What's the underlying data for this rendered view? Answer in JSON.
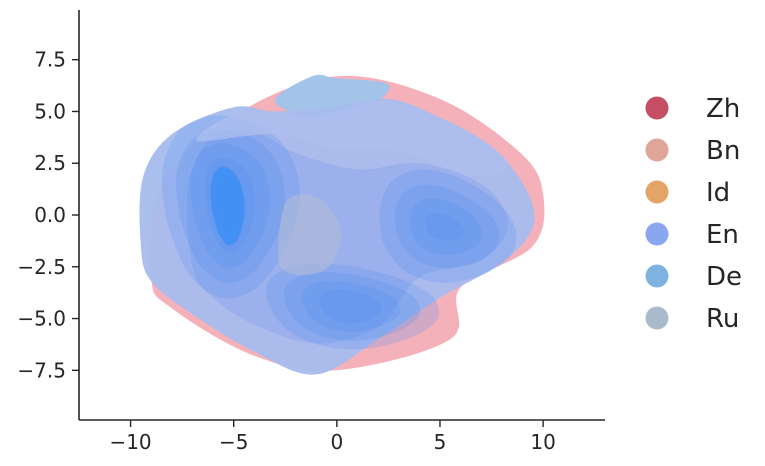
{
  "chart_data": {
    "type": "area",
    "subtype": "kde-density-contours",
    "title": "",
    "xlabel": "",
    "ylabel": "",
    "xlim": [
      -12.5,
      13
    ],
    "ylim": [
      -9.9,
      9.9
    ],
    "x_ticks": [
      -10,
      -5,
      0,
      5,
      10
    ],
    "y_ticks": [
      -7.5,
      -5.0,
      -2.5,
      0.0,
      2.5,
      5.0,
      7.5
    ],
    "x_tick_labels": [
      "−10",
      "−5",
      "0",
      "5",
      "10"
    ],
    "y_tick_labels": [
      "−7.5",
      "−5.0",
      "−2.5",
      "0.0",
      "2.5",
      "5.0",
      "7.5"
    ],
    "grid": false,
    "legend_position": "right",
    "series": [
      {
        "name": "Zh",
        "color": "#c44e64"
      },
      {
        "name": "Bn",
        "color": "#dea598"
      },
      {
        "name": "Id",
        "color": "#e2a566"
      },
      {
        "name": "En",
        "color": "#8aa6ef"
      },
      {
        "name": "De",
        "color": "#7fb2e0"
      },
      {
        "name": "Ru",
        "color": "#a9bacb"
      }
    ],
    "outer_extents": [
      {
        "series": "Zh",
        "color": "#f4adb6",
        "outline": [
          [
            -9,
            -3
          ],
          [
            -8.5,
            1.5
          ],
          [
            -5,
            4.8
          ],
          [
            0,
            6.7
          ],
          [
            5,
            5.6
          ],
          [
            8.9,
            3
          ],
          [
            10,
            1
          ],
          [
            9.5,
            -1.5
          ],
          [
            6,
            -3.5
          ],
          [
            5.5,
            -6
          ],
          [
            0,
            -7.5
          ],
          [
            -4,
            -6.8
          ],
          [
            -8,
            -4.5
          ]
        ]
      },
      {
        "series": "De",
        "color": "#9ec4ea",
        "outline": [
          [
            -3,
            5.5
          ],
          [
            -1.2,
            6.7
          ],
          [
            0,
            6.6
          ],
          [
            2.5,
            6.3
          ],
          [
            1.5,
            5.2
          ],
          [
            -1,
            4.7
          ]
        ]
      }
    ],
    "density_peaks": [
      {
        "x": -5.2,
        "y": 0.5,
        "level": "highest"
      },
      {
        "x": 5.8,
        "y": -0.8,
        "level": "high"
      },
      {
        "x": 0.5,
        "y": -4.4,
        "level": "high"
      },
      {
        "x": -1.2,
        "y": -0.8,
        "level": "low (hollow)"
      }
    ]
  }
}
